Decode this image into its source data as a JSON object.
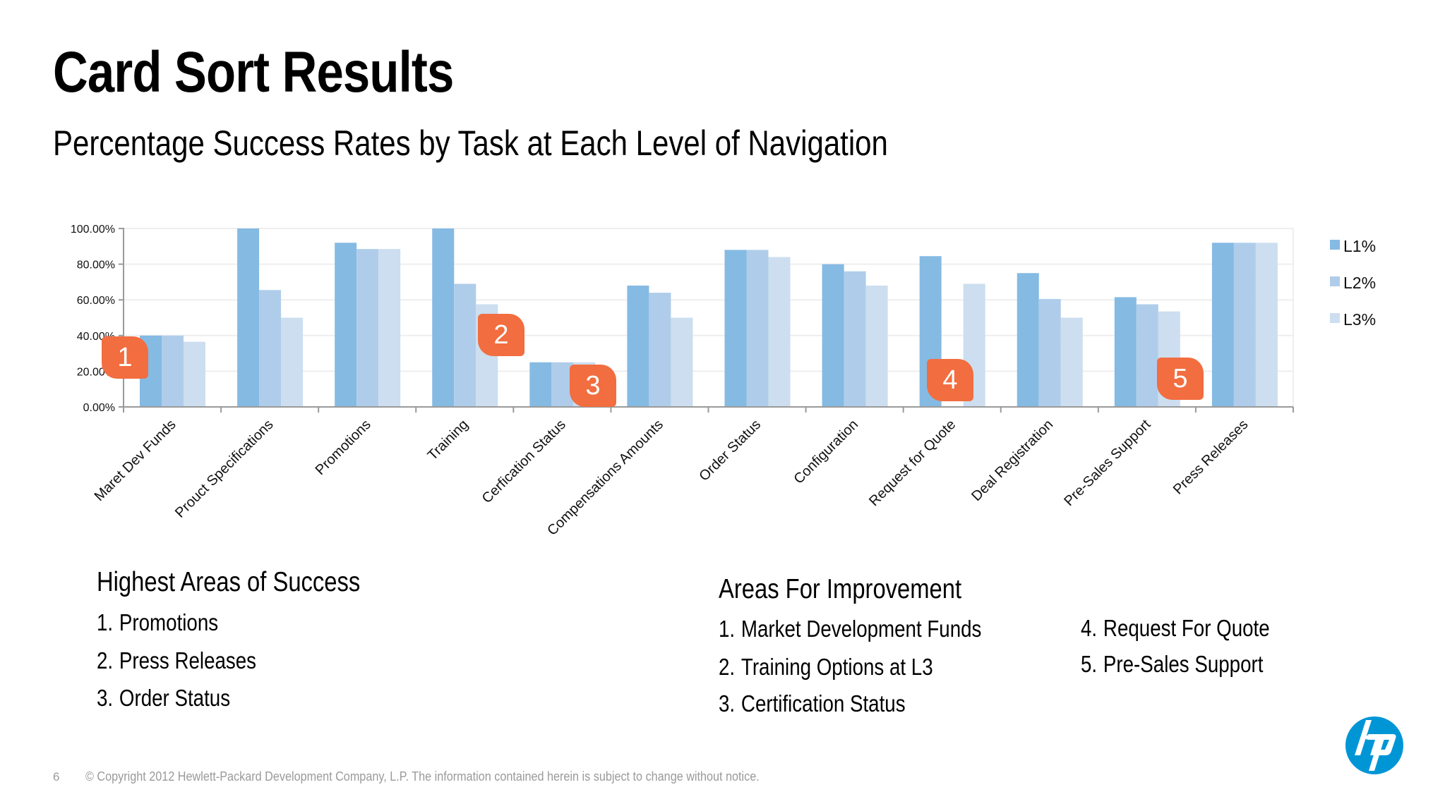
{
  "slide": {
    "title": "Card Sort Results",
    "subtitle": "Percentage Success Rates by Task at Each Level of Navigation",
    "page_number": "6",
    "copyright": "© Copyright 2012 Hewlett-Packard Development Company, L.P.  The information contained herein is subject to change without notice.",
    "logo": "hp-logo-icon",
    "brand_color": "#0096D6"
  },
  "chart_data": {
    "type": "bar",
    "title": "",
    "xlabel": "",
    "ylabel": "",
    "ylim": [
      0,
      100
    ],
    "yticks": [
      "0.00%",
      "20.00%",
      "40.00%",
      "60.00%",
      "80.00%",
      "100.00%"
    ],
    "grid": true,
    "legend_position": "right",
    "categories": [
      "Maret Dev Funds",
      "Prouct Specifications",
      "Promotions",
      "Training",
      "Cerfication Status",
      "Compensations Amounts",
      "Order Status",
      "Configuration",
      "Request for Quote",
      "Deal Registration",
      "Pre-Sales Support",
      "Press Releases"
    ],
    "series": [
      {
        "name": "L1%",
        "color": "#85BAE3",
        "values": [
          40,
          100,
          92,
          100,
          25,
          68,
          88,
          80,
          84.5,
          75,
          61.5,
          92
        ]
      },
      {
        "name": "L2%",
        "color": "#AFCDEA",
        "values": [
          40,
          65.5,
          88.5,
          69,
          25,
          64,
          88,
          76,
          0,
          60.5,
          57.5,
          92
        ]
      },
      {
        "name": "L3%",
        "color": "#CCDEEF",
        "values": [
          36.5,
          50,
          88.5,
          57.5,
          25,
          50,
          84,
          68,
          69,
          50,
          53.5,
          92
        ]
      }
    ],
    "annotations": [
      {
        "label": "1",
        "category": "Maret Dev Funds",
        "color": "#F26D3F"
      },
      {
        "label": "2",
        "category": "Training",
        "color": "#F26D3F"
      },
      {
        "label": "3",
        "category": "Cerfication Status",
        "color": "#F26D3F"
      },
      {
        "label": "4",
        "category": "Request for Quote",
        "color": "#F26D3F"
      },
      {
        "label": "5",
        "category": "Pre-Sales Support",
        "color": "#F26D3F"
      }
    ]
  },
  "success": {
    "heading": "Highest Areas of Success",
    "items": [
      {
        "num": "1.",
        "text": "Promotions"
      },
      {
        "num": "2.",
        "text": "Press Releases"
      },
      {
        "num": "3.",
        "text": "Order Status"
      }
    ]
  },
  "improvement": {
    "heading": "Areas For Improvement",
    "items": [
      {
        "num": "1.",
        "text": "Market Development Funds"
      },
      {
        "num": "2.",
        "text": "Training Options at L3"
      },
      {
        "num": "3.",
        "text": "Certification Status"
      },
      {
        "num": "4.",
        "text": "Request For Quote"
      },
      {
        "num": "5.",
        "text": "Pre-Sales Support"
      }
    ]
  }
}
